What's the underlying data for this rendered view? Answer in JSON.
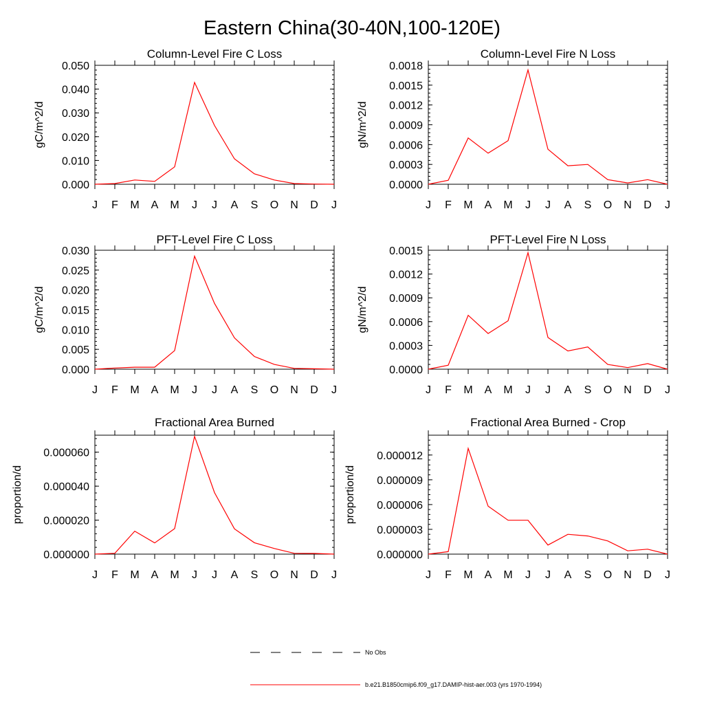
{
  "figure": {
    "title": "Eastern China(30-40N,100-120E)"
  },
  "months": [
    "J",
    "F",
    "M",
    "A",
    "M",
    "J",
    "J",
    "A",
    "S",
    "O",
    "N",
    "D",
    "J"
  ],
  "legend": {
    "items": [
      {
        "label": "No Obs",
        "style": "dashed",
        "color": "#000000"
      },
      {
        "label": "b.e21.B1850cmip6.f09_g17.DAMIP-hist-aer.003 (yrs 1970-1994)",
        "style": "solid",
        "color": "#ff0000"
      }
    ]
  },
  "colors": {
    "series": "#ff0000",
    "axis": "#000000",
    "background": "#ffffff"
  },
  "chart_data": [
    {
      "type": "line",
      "title": "Column-Level Fire C Loss",
      "ylabel": "gC/m^2/d",
      "ylim": [
        0,
        0.05
      ],
      "yticks": [
        "0.000",
        "0.010",
        "0.020",
        "0.030",
        "0.040",
        "0.050"
      ],
      "x": [
        "J",
        "F",
        "M",
        "A",
        "M",
        "J",
        "J",
        "A",
        "S",
        "O",
        "N",
        "D",
        "J"
      ],
      "series": [
        {
          "values": [
            0.0,
            0.0003,
            0.0018,
            0.0012,
            0.0073,
            0.0428,
            0.0247,
            0.0107,
            0.0044,
            0.0018,
            0.0003,
            0.0001,
            0.0
          ]
        }
      ]
    },
    {
      "type": "line",
      "title": "Column-Level Fire N Loss",
      "ylabel": "gN/m^2/d",
      "ylim": [
        0,
        0.0018
      ],
      "yticks": [
        "0.0000",
        "0.0003",
        "0.0006",
        "0.0009",
        "0.0012",
        "0.0015",
        "0.0018"
      ],
      "x": [
        "J",
        "F",
        "M",
        "A",
        "M",
        "J",
        "J",
        "A",
        "S",
        "O",
        "N",
        "D",
        "J"
      ],
      "series": [
        {
          "values": [
            0.0,
            6e-05,
            0.0007,
            0.00047,
            0.00066,
            0.00173,
            0.00053,
            0.00028,
            0.0003,
            7e-05,
            2e-05,
            7e-05,
            0.0
          ]
        }
      ]
    },
    {
      "type": "line",
      "title": "PFT-Level Fire C Loss",
      "ylabel": "gC/m^2/d",
      "ylim": [
        0,
        0.03
      ],
      "yticks": [
        "0.000",
        "0.005",
        "0.010",
        "0.015",
        "0.020",
        "0.025",
        "0.030"
      ],
      "x": [
        "J",
        "F",
        "M",
        "A",
        "M",
        "J",
        "J",
        "A",
        "S",
        "O",
        "N",
        "D",
        "J"
      ],
      "series": [
        {
          "values": [
            0.0,
            0.0003,
            0.0005,
            0.0005,
            0.0047,
            0.0285,
            0.0166,
            0.0079,
            0.0032,
            0.0012,
            0.0002,
            0.0001,
            0.0
          ]
        }
      ]
    },
    {
      "type": "line",
      "title": "PFT-Level Fire N Loss",
      "ylabel": "gN/m^2/d",
      "ylim": [
        0,
        0.0015
      ],
      "yticks": [
        "0.0000",
        "0.0003",
        "0.0006",
        "0.0009",
        "0.0012",
        "0.0015"
      ],
      "x": [
        "J",
        "F",
        "M",
        "A",
        "M",
        "J",
        "J",
        "A",
        "S",
        "O",
        "N",
        "D",
        "J"
      ],
      "series": [
        {
          "values": [
            0.0,
            5e-05,
            0.00068,
            0.00045,
            0.00061,
            0.00147,
            0.0004,
            0.00023,
            0.00028,
            6e-05,
            2e-05,
            7e-05,
            0.0
          ]
        }
      ]
    },
    {
      "type": "line",
      "title": "Fractional Area Burned",
      "ylabel": "proportion/d",
      "ylim": [
        0,
        7e-05
      ],
      "yticks": [
        "0.000000",
        "0.000020",
        "0.000040",
        "0.000060"
      ],
      "x": [
        "J",
        "F",
        "M",
        "A",
        "M",
        "J",
        "J",
        "A",
        "S",
        "O",
        "N",
        "D",
        "J"
      ],
      "series": [
        {
          "values": [
            0.0,
            5e-07,
            1.35e-05,
            6.6e-06,
            1.5e-05,
            6.93e-05,
            3.62e-05,
            1.49e-05,
            6.7e-06,
            3.3e-06,
            5e-07,
            4e-07,
            0.0
          ]
        }
      ]
    },
    {
      "type": "line",
      "title": "Fractional Area Burned - Crop",
      "ylabel": "proportion/d",
      "ylim": [
        0,
        1.44e-05
      ],
      "yticks": [
        "0.000000",
        "0.000003",
        "0.000006",
        "0.000009",
        "0.000012"
      ],
      "x": [
        "J",
        "F",
        "M",
        "A",
        "M",
        "J",
        "J",
        "A",
        "S",
        "O",
        "N",
        "D",
        "J"
      ],
      "series": [
        {
          "values": [
            0.0,
            3e-07,
            1.28e-05,
            5.8e-06,
            4.1e-06,
            4.1e-06,
            1.1e-06,
            2.4e-06,
            2.2e-06,
            1.6e-06,
            4e-07,
            6e-07,
            0.0
          ]
        }
      ]
    }
  ]
}
